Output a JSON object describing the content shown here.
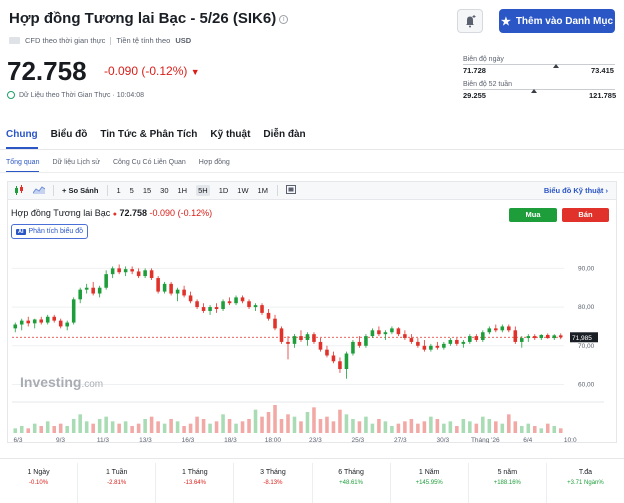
{
  "header": {
    "title": "Hợp đồng Tương lai Bạc - 5/26 (SIK6)",
    "watchlist_label": "Thêm vào Danh Mục",
    "meta_cfd": "CFD theo thời gian thực",
    "meta_currency_label": "Tiền tệ tính theo",
    "meta_currency": "USD"
  },
  "quote": {
    "price": "72.758",
    "change": "-0.090",
    "change_pct": "(-0.12%)",
    "realtime_text": "Dữ Liệu theo Thời Gian Thực · 10:04:08"
  },
  "ranges": {
    "day_label": "Biên độ ngày",
    "day_low": "71.728",
    "day_high": "73.415",
    "day_level": 0.61,
    "week52_label": "Biên độ 52 tuần",
    "week52_low": "29.255",
    "week52_high": "121.785",
    "week52_level": 0.47
  },
  "tabs": [
    "Chung",
    "Biểu đồ",
    "Tin Tức & Phân Tích",
    "Kỹ thuật",
    "Diễn đàn"
  ],
  "subtabs": [
    "Tổng quan",
    "Dữ liệu Lịch sử",
    "Công Cụ Có Liên Quan",
    "Hợp đồng"
  ],
  "toolbar": {
    "compare": "+ So Sánh",
    "intervals": [
      "1",
      "5",
      "15",
      "30",
      "1H",
      "5H",
      "1D",
      "1W",
      "1M"
    ],
    "active_interval": "5H",
    "advanced": "Biểu đồ Kỹ thuật"
  },
  "chart_header": {
    "name": "Hợp đồng Tương lai Bạc",
    "price": "72.758",
    "change": "-0.090",
    "change_pct": "(-0.12%)",
    "buy": "Mua",
    "sell": "Bán",
    "analysis": "Phân tích biểu đồ",
    "ai_badge": "AI"
  },
  "watermark": {
    "brand": "Investing",
    "suffix": ".com"
  },
  "chart_data": {
    "type": "candlestick",
    "y_ticks": [
      "90,00",
      "80,00",
      "70,00",
      "60,00"
    ],
    "ylim": [
      56,
      95
    ],
    "last_price_tag": "71,985",
    "x_ticks": [
      "6/3",
      "9/3",
      "11/3",
      "13/3",
      "16/3",
      "18/3",
      "18:00",
      "23/3",
      "25/3",
      "27/3",
      "30/3",
      "Tháng '26",
      "6/4",
      "10:0"
    ],
    "candles": [
      [
        74.5,
        76.0,
        73.5,
        75.5
      ],
      [
        75.5,
        77.0,
        74.0,
        76.5
      ],
      [
        76.5,
        77.5,
        75.0,
        75.8
      ],
      [
        75.8,
        77.0,
        74.5,
        76.8
      ],
      [
        76.8,
        77.5,
        75.5,
        76.0
      ],
      [
        76.0,
        78.0,
        75.5,
        77.5
      ],
      [
        77.5,
        78.0,
        76.0,
        76.5
      ],
      [
        76.5,
        77.0,
        74.5,
        75.0
      ],
      [
        75.0,
        76.5,
        74.0,
        76.0
      ],
      [
        76.0,
        82.5,
        75.5,
        82.0
      ],
      [
        82.0,
        85.0,
        81.0,
        84.5
      ],
      [
        84.5,
        86.0,
        83.5,
        85.0
      ],
      [
        85.0,
        86.5,
        83.0,
        83.5
      ],
      [
        83.5,
        85.5,
        82.5,
        85.0
      ],
      [
        85.0,
        89.5,
        84.5,
        88.5
      ],
      [
        88.5,
        90.5,
        87.5,
        90.0
      ],
      [
        90.0,
        91.0,
        88.5,
        89.0
      ],
      [
        89.0,
        90.5,
        88.0,
        89.8
      ],
      [
        89.8,
        90.5,
        88.5,
        89.2
      ],
      [
        89.2,
        90.0,
        87.5,
        88.0
      ],
      [
        88.0,
        90.0,
        87.5,
        89.5
      ],
      [
        89.5,
        90.0,
        87.0,
        87.5
      ],
      [
        87.5,
        88.0,
        83.5,
        84.0
      ],
      [
        84.0,
        86.5,
        83.5,
        86.0
      ],
      [
        86.0,
        86.5,
        83.0,
        83.5
      ],
      [
        83.5,
        85.0,
        81.5,
        84.5
      ],
      [
        84.5,
        85.5,
        82.5,
        83.0
      ],
      [
        83.0,
        84.0,
        81.0,
        81.5
      ],
      [
        81.5,
        82.0,
        79.5,
        80.0
      ],
      [
        80.0,
        81.0,
        78.5,
        79.0
      ],
      [
        79.0,
        80.5,
        78.0,
        80.0
      ],
      [
        80.0,
        81.0,
        78.5,
        79.5
      ],
      [
        79.5,
        82.0,
        79.0,
        81.5
      ],
      [
        81.5,
        82.5,
        80.5,
        81.0
      ],
      [
        81.0,
        83.0,
        80.5,
        82.5
      ],
      [
        82.5,
        83.0,
        81.0,
        81.5
      ],
      [
        81.5,
        82.0,
        79.5,
        80.0
      ],
      [
        80.0,
        81.0,
        79.0,
        80.5
      ],
      [
        80.5,
        81.0,
        78.0,
        78.5
      ],
      [
        78.5,
        79.5,
        76.5,
        77.0
      ],
      [
        77.0,
        78.0,
        74.0,
        74.5
      ],
      [
        74.5,
        75.0,
        70.5,
        71.0
      ],
      [
        71.0,
        72.5,
        66.5,
        70.5
      ],
      [
        70.5,
        73.0,
        69.5,
        72.5
      ],
      [
        72.5,
        74.0,
        71.0,
        71.5
      ],
      [
        71.5,
        73.5,
        70.0,
        73.0
      ],
      [
        73.0,
        73.5,
        70.5,
        71.0
      ],
      [
        71.0,
        72.0,
        68.5,
        69.0
      ],
      [
        69.0,
        70.0,
        67.0,
        67.5
      ],
      [
        67.5,
        68.5,
        65.5,
        66.0
      ],
      [
        66.0,
        67.0,
        63.0,
        64.0
      ],
      [
        64.0,
        68.5,
        61.5,
        68.0
      ],
      [
        68.0,
        71.5,
        67.5,
        71.0
      ],
      [
        71.0,
        72.5,
        69.5,
        70.0
      ],
      [
        70.0,
        73.0,
        69.5,
        72.5
      ],
      [
        72.5,
        74.5,
        72.0,
        74.0
      ],
      [
        74.0,
        75.0,
        72.5,
        73.0
      ],
      [
        73.0,
        74.0,
        71.5,
        73.5
      ],
      [
        73.5,
        75.0,
        73.0,
        74.5
      ],
      [
        74.5,
        74.8,
        72.5,
        73.0
      ],
      [
        73.0,
        74.0,
        71.5,
        72.0
      ],
      [
        72.0,
        73.0,
        70.5,
        71.0
      ],
      [
        71.0,
        72.0,
        69.5,
        70.0
      ],
      [
        70.0,
        71.5,
        68.5,
        69.0
      ],
      [
        69.0,
        70.5,
        68.5,
        70.0
      ],
      [
        70.0,
        71.0,
        69.0,
        69.5
      ],
      [
        69.5,
        71.0,
        69.0,
        70.5
      ],
      [
        70.5,
        72.0,
        70.0,
        71.5
      ],
      [
        71.5,
        72.0,
        70.0,
        70.5
      ],
      [
        70.5,
        71.5,
        69.5,
        71.0
      ],
      [
        71.0,
        73.0,
        70.5,
        72.5
      ],
      [
        72.5,
        73.0,
        71.0,
        71.5
      ],
      [
        71.5,
        74.0,
        71.0,
        73.5
      ],
      [
        73.5,
        75.0,
        73.0,
        74.5
      ],
      [
        74.5,
        75.5,
        73.5,
        74.0
      ],
      [
        74.0,
        75.5,
        73.5,
        75.0
      ],
      [
        75.0,
        75.5,
        73.5,
        74.0
      ],
      [
        74.0,
        75.0,
        70.5,
        71.0
      ],
      [
        71.0,
        72.5,
        69.5,
        72.0
      ],
      [
        72.0,
        73.0,
        71.0,
        72.5
      ],
      [
        72.5,
        73.0,
        71.5,
        72.0
      ],
      [
        72.0,
        73.0,
        71.5,
        72.8
      ],
      [
        72.8,
        73.2,
        71.8,
        72.0
      ],
      [
        72.0,
        73.0,
        71.5,
        72.7
      ],
      [
        72.7,
        73.2,
        71.7,
        72.2
      ]
    ],
    "volumes": [
      2,
      3,
      2,
      4,
      3,
      5,
      3,
      4,
      3,
      6,
      8,
      5,
      4,
      6,
      7,
      5,
      4,
      5,
      3,
      4,
      6,
      7,
      5,
      4,
      6,
      5,
      3,
      4,
      7,
      6,
      4,
      5,
      8,
      6,
      4,
      5,
      6,
      10,
      7,
      9,
      12,
      6,
      8,
      7,
      5,
      9,
      11,
      6,
      7,
      5,
      10,
      8,
      6,
      5,
      7,
      4,
      6,
      5,
      3,
      4,
      5,
      6,
      4,
      5,
      7,
      6,
      4,
      5,
      3,
      6,
      5,
      4,
      7,
      6,
      5,
      4,
      8,
      5,
      3,
      4,
      3,
      2,
      4,
      3,
      2
    ]
  },
  "performance": [
    {
      "label": "1 Ngày",
      "value": "-0.10%",
      "dir": "neg"
    },
    {
      "label": "1 Tuần",
      "value": "-2.81%",
      "dir": "neg"
    },
    {
      "label": "1 Tháng",
      "value": "-13.64%",
      "dir": "neg"
    },
    {
      "label": "3 Tháng",
      "value": "-8.13%",
      "dir": "neg"
    },
    {
      "label": "6 Tháng",
      "value": "+48.61%",
      "dir": "pos"
    },
    {
      "label": "1 Năm",
      "value": "+145.95%",
      "dir": "pos"
    },
    {
      "label": "5 năm",
      "value": "+188.16%",
      "dir": "pos"
    },
    {
      "label": "T.đa",
      "value": "+3.71 Ngàn%",
      "dir": "pos"
    }
  ],
  "colors": {
    "accent": "#2a56c6",
    "up": "#1e9e3a",
    "down": "#e0322a",
    "down_vol": "#f2a9a5",
    "up_vol": "#a9dcb4"
  }
}
